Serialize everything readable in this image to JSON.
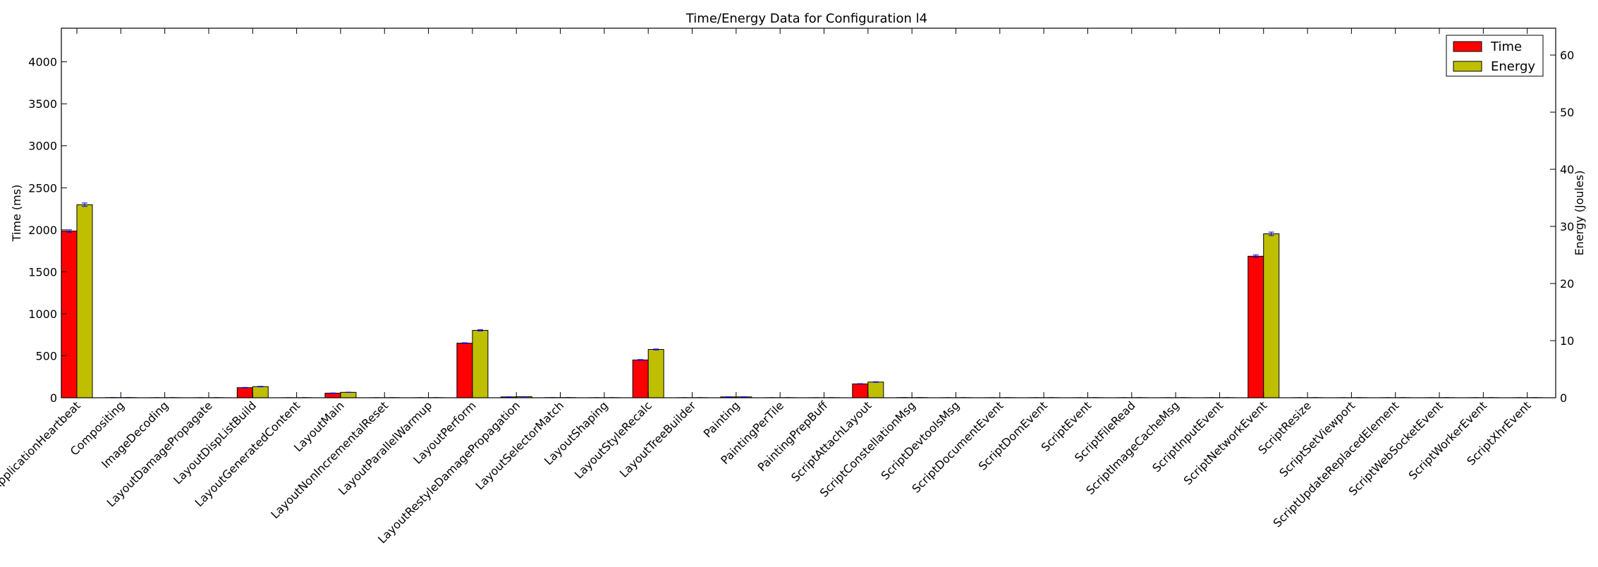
{
  "chart_data": {
    "type": "bar",
    "title": "Time/Energy Data for Configuration l4",
    "xlabel": "",
    "ylabel_left": "Time (ms)",
    "ylabel_right": "Energy (Joules)",
    "ylim_left": [
      0,
      4400
    ],
    "ylim_right": [
      0,
      64.7
    ],
    "yticks_left": [
      0,
      500,
      1000,
      1500,
      2000,
      2500,
      3000,
      3500,
      4000
    ],
    "yticks_right": [
      0,
      10,
      20,
      30,
      40,
      50,
      60
    ],
    "legend_position": "top-right",
    "grid": false,
    "categories": [
      "ApplicationHeartbeat",
      "Compositing",
      "ImageDecoding",
      "LayoutDamagePropagate",
      "LayoutDispListBuild",
      "LayoutGeneratedContent",
      "LayoutMain",
      "LayoutNonIncrementalReset",
      "LayoutParallelWarmup",
      "LayoutPerform",
      "LayoutRestyleDamagePropagation",
      "LayoutSelectorMatch",
      "LayoutShaping",
      "LayoutStyleRecalc",
      "LayoutTreeBuilder",
      "Painting",
      "PaintingPerTile",
      "PaintingPrepBuff",
      "ScriptAttachLayout",
      "ScriptConstellationMsg",
      "ScriptDevtoolsMsg",
      "ScriptDocumentEvent",
      "ScriptDomEvent",
      "ScriptEvent",
      "ScriptFileRead",
      "ScriptImageCacheMsg",
      "ScriptInputEvent",
      "ScriptNetworkEvent",
      "ScriptResize",
      "ScriptSetViewport",
      "ScriptUpdateReplacedElement",
      "ScriptWebSocketEvent",
      "ScriptWorkerEvent",
      "ScriptXhrEvent"
    ],
    "series": [
      {
        "name": "Time",
        "axis": "left",
        "color": "#ff0000",
        "values": [
          1985,
          2,
          1,
          1,
          120,
          1,
          55,
          1,
          1,
          650,
          10,
          2,
          1,
          450,
          1,
          10,
          1,
          1,
          165,
          2,
          1,
          1,
          1,
          1,
          1,
          1,
          1,
          1685,
          1,
          1,
          1,
          1,
          1,
          1
        ],
        "errors": [
          15,
          0,
          0,
          0,
          3,
          0,
          2,
          0,
          0,
          5,
          1,
          0,
          0,
          5,
          0,
          1,
          0,
          0,
          3,
          0,
          0,
          0,
          0,
          0,
          0,
          0,
          0,
          15,
          0,
          0,
          0,
          0,
          0,
          0
        ]
      },
      {
        "name": "Energy",
        "axis": "right",
        "color": "#bfbf00",
        "values": [
          33.8,
          0.03,
          0.02,
          0.02,
          1.95,
          0.02,
          0.95,
          0.02,
          0.02,
          11.8,
          0.18,
          0.03,
          0.02,
          8.45,
          0.02,
          0.15,
          0.02,
          0.02,
          2.75,
          0.03,
          0.02,
          0.02,
          0.02,
          0.02,
          0.02,
          0.02,
          0.02,
          28.7,
          0.02,
          0.02,
          0.02,
          0.02,
          0.02,
          0.02
        ],
        "errors": [
          0.3,
          0,
          0,
          0,
          0.05,
          0,
          0.03,
          0,
          0,
          0.1,
          0.01,
          0,
          0,
          0.08,
          0,
          0.01,
          0,
          0,
          0.05,
          0,
          0,
          0,
          0,
          0,
          0,
          0,
          0,
          0.3,
          0,
          0,
          0,
          0,
          0,
          0
        ]
      }
    ]
  }
}
